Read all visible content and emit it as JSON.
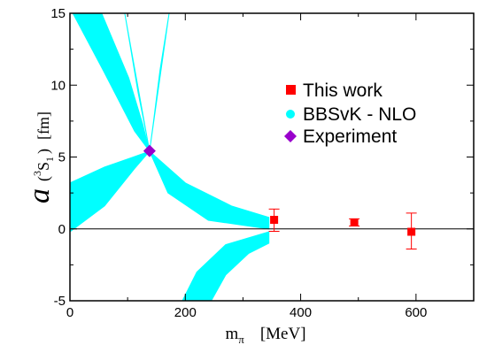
{
  "chart_data": {
    "type": "scatter",
    "xlim": [
      0,
      700
    ],
    "ylim": [
      -5,
      15
    ],
    "x_ticks": [
      0,
      200,
      400,
      600
    ],
    "y_ticks": [
      -5,
      0,
      5,
      10,
      15
    ],
    "x_tick_labels": [
      "0",
      "200",
      "400",
      "600"
    ],
    "y_tick_labels": [
      "-5",
      "0",
      "5",
      "10",
      "15"
    ],
    "xlabel": {
      "symbol": "m",
      "subscript": "π",
      "unit": "[MeV]"
    },
    "ylabel": {
      "symbol": "a",
      "paren_open": "(",
      "superscript": "3",
      "state": "S",
      "subscript": "1",
      "paren_close": ")",
      "unit": "[fm]"
    },
    "zero_line": true,
    "legend_position": "top-right",
    "colors": {
      "this_work": "#ff0000",
      "bbsvk": "#00ffff",
      "experiment": "#9900cc",
      "errorbar": "#ff0000"
    },
    "series": [
      {
        "name": "This work",
        "marker": "square",
        "points": [
          {
            "x": 354,
            "y": 0.63,
            "yerr_low": 0.8,
            "yerr_high": 0.75
          },
          {
            "x": 493,
            "y": 0.45,
            "yerr_low": 0.25,
            "yerr_high": 0.25
          },
          {
            "x": 592,
            "y": -0.2,
            "yerr_low": 1.2,
            "yerr_high": 1.3
          }
        ]
      },
      {
        "name": "BBSvK - NLO",
        "marker": "circle",
        "band": {
          "center_x": 138,
          "center_y": 5.4,
          "upper_left_edges": [
            [
              [
                5,
                15
              ],
              [
                58,
                11
              ],
              [
                112,
                6.8
              ],
              [
                138,
                5.4
              ]
            ],
            [
              [
                55,
                15
              ],
              [
                102,
                10.5
              ],
              [
                126,
                7.3
              ],
              [
                138,
                5.4
              ]
            ]
          ],
          "upper_right_edges": [
            [
              [
                95,
                15
              ],
              [
                118,
                9.5
              ],
              [
                132,
                6.7
              ],
              [
                138,
                5.4
              ]
            ],
            [
              [
                138,
                5.4
              ],
              [
                144,
                7.2
              ],
              [
                156,
                11
              ],
              [
                172,
                15
              ]
            ]
          ],
          "left_lobe_edges": [
            [
              [
                0,
                3.2
              ],
              [
                60,
                4.3
              ],
              [
                110,
                5.0
              ],
              [
                138,
                5.4
              ]
            ],
            [
              [
                0,
                -0.2
              ],
              [
                60,
                1.6
              ],
              [
                112,
                4.2
              ],
              [
                138,
                5.4
              ]
            ]
          ],
          "right_lobe_edges": [
            [
              [
                138,
                5.4
              ],
              [
                200,
                3.2
              ],
              [
                280,
                1.6
              ],
              [
                345,
                0.8
              ]
            ],
            [
              [
                138,
                5.4
              ],
              [
                170,
                2.5
              ],
              [
                240,
                0.6
              ],
              [
                345,
                0
              ]
            ]
          ],
          "lower_edges": [
            [
              [
                195,
                -5
              ],
              [
                220,
                -3.0
              ],
              [
                270,
                -1.1
              ],
              [
                345,
                -0.2
              ]
            ],
            [
              [
                245,
                -5
              ],
              [
                270,
                -3.2
              ],
              [
                310,
                -1.7
              ],
              [
                345,
                -1.0
              ]
            ]
          ]
        }
      },
      {
        "name": "Experiment",
        "marker": "diamond",
        "points": [
          {
            "x": 138,
            "y": 5.42
          }
        ]
      }
    ]
  },
  "legend": {
    "items": [
      {
        "label": "This work",
        "icon": "red-square-icon"
      },
      {
        "label": "BBSvK - NLO",
        "icon": "cyan-circle-icon"
      },
      {
        "label": "Experiment",
        "icon": "purple-diamond-icon"
      }
    ]
  }
}
